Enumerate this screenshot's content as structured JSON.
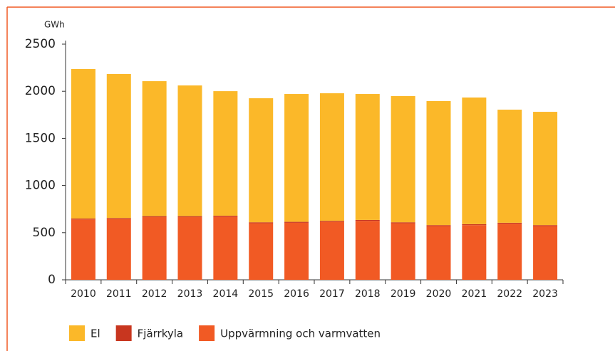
{
  "chart_data": {
    "type": "bar",
    "stacked": true,
    "y_axis_label": "GWh",
    "categories": [
      "2010",
      "2011",
      "2012",
      "2013",
      "2014",
      "2015",
      "2016",
      "2017",
      "2018",
      "2019",
      "2020",
      "2021",
      "2022",
      "2023"
    ],
    "series": [
      {
        "name": "Uppvärmning och varmvatten",
        "color": "#f15a24",
        "values": [
          640,
          645,
          665,
          665,
          670,
          600,
          605,
          615,
          625,
          600,
          570,
          580,
          595,
          570
        ]
      },
      {
        "name": "Fjärrkyla",
        "color": "#c8361f",
        "values": [
          10,
          10,
          10,
          10,
          10,
          10,
          10,
          10,
          10,
          10,
          10,
          10,
          10,
          10
        ]
      },
      {
        "name": "El",
        "color": "#fbb829",
        "values": [
          1586,
          1528,
          1432,
          1387,
          1321,
          1316,
          1356,
          1354,
          1336,
          1339,
          1316,
          1344,
          1200,
          1202
        ]
      }
    ],
    "legend_order": [
      2,
      1,
      0
    ],
    "ylim": [
      0,
      2500
    ],
    "yticks": [
      0,
      500,
      1000,
      1500,
      2000,
      2500
    ]
  }
}
